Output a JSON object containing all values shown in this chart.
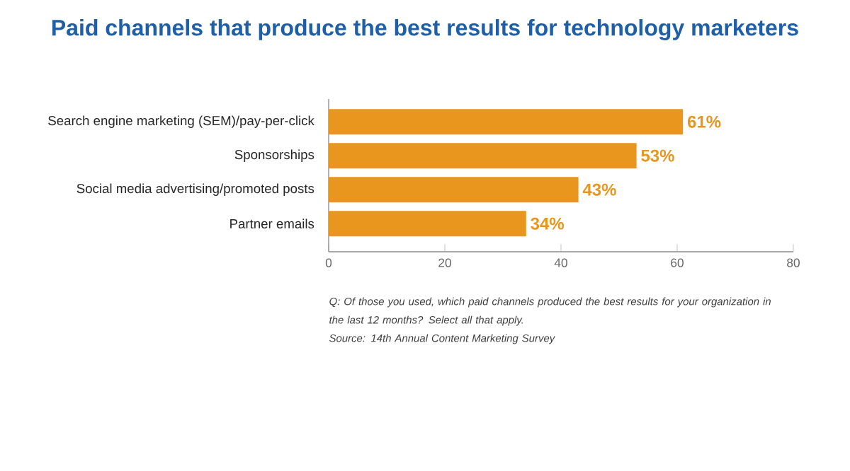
{
  "chart_data": {
    "type": "bar",
    "orientation": "horizontal",
    "title": "Paid channels that produce the best results for technology marketers",
    "categories": [
      "Search engine marketing (SEM)/pay-per-click",
      "Sponsorships",
      "Social media advertising/promoted posts",
      "Partner emails"
    ],
    "values": [
      61,
      53,
      43,
      34
    ],
    "value_labels": [
      "61%",
      "53%",
      "43%",
      "34%"
    ],
    "color": "#e8961e",
    "xlim": [
      0,
      80
    ],
    "xticks": [
      0,
      20,
      40,
      60,
      80
    ],
    "annotations": [
      "Q: Of those you used, which paid channels produced the best results for your organization in the last 12 months? Select all that apply.",
      "Source: 14th Annual Content Marketing Survey"
    ]
  }
}
